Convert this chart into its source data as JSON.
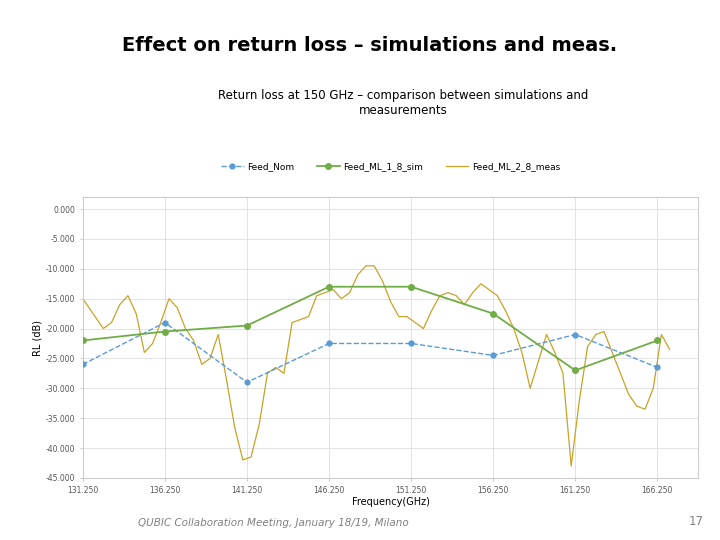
{
  "title_main": "Effect on return loss – simulations and meas.",
  "title_sub": "Return loss at 150 GHz – comparison between simulations and\nmeasurements",
  "xlabel": "Frequency(GHz)",
  "ylabel": "RL (dB)",
  "xlim": [
    131.25,
    168.75
  ],
  "ylim": [
    -45,
    2
  ],
  "yticks": [
    0,
    -5,
    -10,
    -15,
    -20,
    -25,
    -30,
    -35,
    -40,
    -45
  ],
  "ytick_labels": [
    "0.000",
    "-5.000",
    "-10.000",
    "-15.000",
    "-20.000",
    "-25.000",
    "-30.000",
    "-35.000",
    "-40.000",
    "-45.000"
  ],
  "xticks": [
    131.25,
    136.25,
    141.25,
    146.25,
    151.25,
    156.25,
    161.25,
    166.25
  ],
  "xtick_labels": [
    "131.250",
    "136.250",
    "141.250",
    "146.250",
    "151.250",
    "156.250",
    "161.250",
    "166.250"
  ],
  "footer": "QUBIC Collaboration Meeting, January 18/19, Milano",
  "page_num": "17",
  "background_color": "#ffffff",
  "plot_bg": "#ffffff",
  "grid_color": "#d8d8d8",
  "title_color": "#000000",
  "footer_color": "#808080",
  "legend_entries": [
    "Feed_Nom",
    "Feed_ML_1_8_sim",
    "Feed_ML_2_8_meas"
  ],
  "legend_colors": [
    "#5b9bd5",
    "#70ad47",
    "#c9a227"
  ],
  "line1_x": [
    131.25,
    136.25,
    141.25,
    146.25,
    151.25,
    156.25,
    161.25,
    166.25
  ],
  "line1_y": [
    -26.0,
    -19.0,
    -29.0,
    -22.5,
    -22.5,
    -24.5,
    -21.0,
    -26.5
  ],
  "line2_x": [
    131.25,
    136.25,
    141.25,
    146.25,
    151.25,
    156.25,
    161.25,
    166.25
  ],
  "line2_y": [
    -22.0,
    -20.5,
    -19.5,
    -13.0,
    -13.0,
    -17.5,
    -27.0,
    -22.0
  ],
  "line3_x": [
    131.25,
    132.0,
    132.5,
    133.0,
    133.5,
    134.0,
    134.5,
    135.0,
    135.5,
    136.0,
    136.5,
    137.0,
    137.5,
    138.0,
    138.5,
    139.0,
    139.5,
    140.0,
    140.5,
    141.0,
    141.5,
    142.0,
    142.5,
    143.0,
    143.5,
    144.0,
    144.5,
    145.0,
    145.5,
    146.0,
    146.5,
    147.0,
    147.5,
    148.0,
    148.5,
    149.0,
    149.5,
    150.0,
    150.5,
    151.0,
    151.5,
    152.0,
    152.5,
    153.0,
    153.5,
    154.0,
    154.5,
    155.0,
    155.5,
    156.0,
    156.5,
    157.0,
    157.5,
    158.0,
    158.5,
    159.0,
    159.5,
    160.0,
    160.5,
    161.0,
    161.5,
    162.0,
    162.5,
    163.0,
    163.5,
    164.0,
    164.5,
    165.0,
    165.5,
    166.0,
    166.5,
    167.0
  ],
  "line3_y": [
    -15.0,
    -18.0,
    -20.0,
    -19.0,
    -16.0,
    -14.5,
    -17.5,
    -24.0,
    -22.5,
    -19.0,
    -15.0,
    -16.5,
    -20.0,
    -22.0,
    -26.0,
    -25.0,
    -21.0,
    -28.5,
    -36.5,
    -42.0,
    -41.5,
    -36.0,
    -27.5,
    -26.5,
    -27.5,
    -19.0,
    -18.5,
    -18.0,
    -14.5,
    -14.0,
    -13.5,
    -15.0,
    -14.0,
    -11.0,
    -9.5,
    -9.5,
    -12.0,
    -15.5,
    -18.0,
    -18.0,
    -19.0,
    -20.0,
    -17.0,
    -14.5,
    -14.0,
    -14.5,
    -16.0,
    -14.0,
    -12.5,
    -13.5,
    -14.5,
    -17.0,
    -20.0,
    -24.0,
    -30.0,
    -25.5,
    -21.0,
    -24.0,
    -27.5,
    -43.0,
    -32.0,
    -23.0,
    -21.0,
    -20.5,
    -24.0,
    -27.5,
    -31.0,
    -33.0,
    -33.5,
    -30.0,
    -21.0,
    -23.5
  ]
}
